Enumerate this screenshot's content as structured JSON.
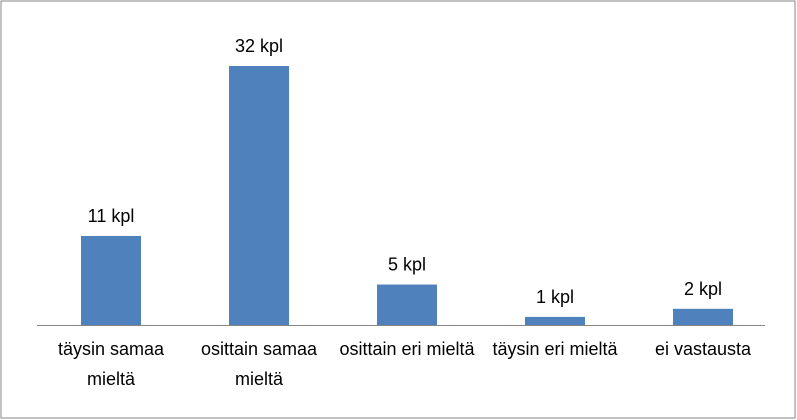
{
  "chart_data": {
    "type": "bar",
    "categories": [
      "täysin samaa mieltä",
      "osittain samaa mieltä",
      "osittain eri mieltä",
      "täysin eri mieltä",
      "ei vastausta"
    ],
    "values": [
      11,
      32,
      5,
      1,
      2
    ],
    "value_labels": [
      "11 kpl",
      "32 kpl",
      "5 kpl",
      "1 kpl",
      "2 kpl"
    ],
    "color": "#4f81bd"
  }
}
